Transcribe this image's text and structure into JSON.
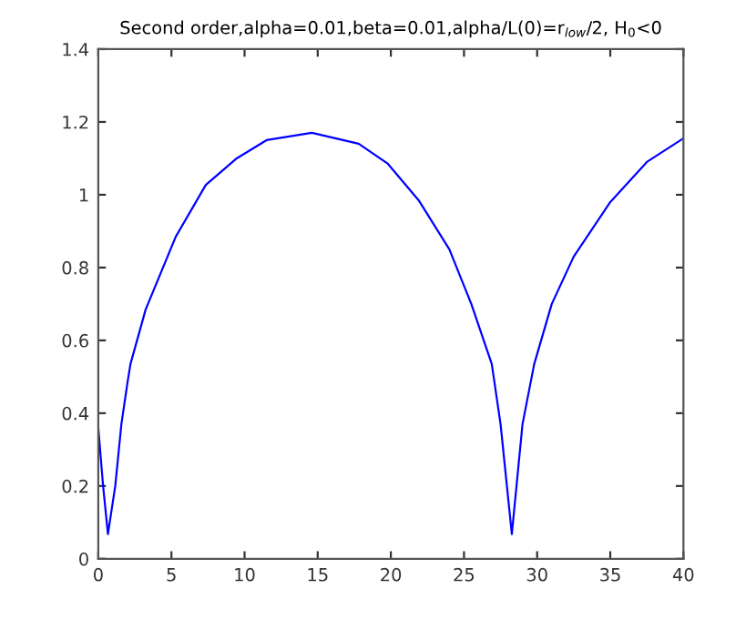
{
  "chart_data": {
    "type": "line",
    "title": "Second order,alpha=0.01,beta=0.01,alpha/L(0)=r$_{low}$/2, H$_{0}$<0",
    "x": [
      0,
      0.33,
      0.66,
      1.16,
      1.58,
      2.0,
      2.2,
      3.24,
      5.3,
      7.35,
      9.46,
      11.5,
      14.6,
      17.8,
      19.8,
      21.9,
      24.0,
      25.5,
      26.9,
      27.5,
      28.27,
      29.0,
      29.8,
      31.0,
      32.5,
      35.0,
      37.5,
      40.0
    ],
    "series": [
      {
        "color": "#0000ff",
        "values": [
          0.36,
          0.2,
          0.068,
          0.2,
          0.37,
          0.485,
          0.535,
          0.685,
          0.885,
          1.027,
          1.1,
          1.15,
          1.17,
          1.14,
          1.085,
          0.985,
          0.85,
          0.7,
          0.535,
          0.37,
          0.068,
          0.37,
          0.535,
          0.7,
          0.83,
          0.98,
          1.09,
          1.155
        ]
      }
    ],
    "xlim": [
      0,
      40
    ],
    "xticks": [
      0,
      5,
      10,
      15,
      20,
      25,
      30,
      35,
      40
    ],
    "ylim": [
      0,
      1.4
    ],
    "yticks": [
      0,
      0.2,
      0.4,
      0.6,
      0.8,
      1,
      1.2,
      1.4
    ],
    "grid": false,
    "legend": false
  }
}
